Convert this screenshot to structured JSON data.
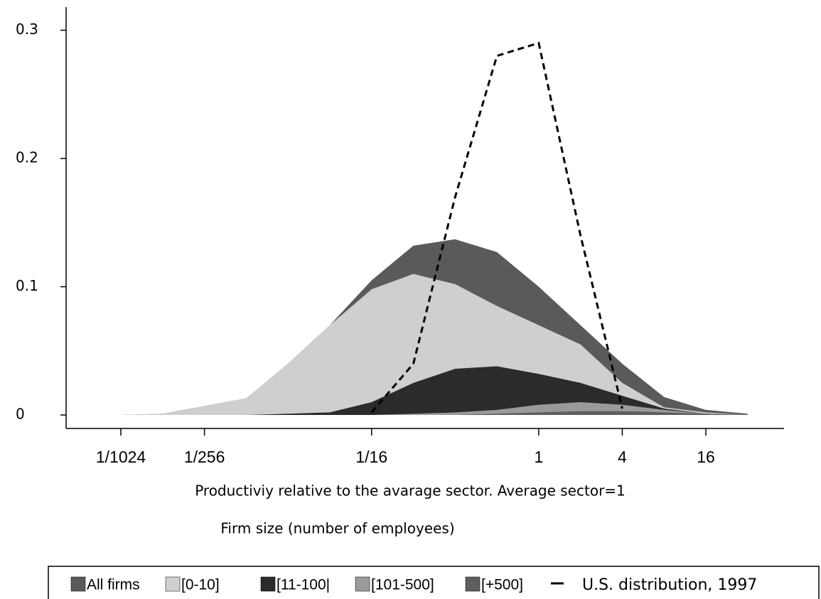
{
  "chart_data": {
    "type": "area",
    "xlabel": "Productiviy relative to the avarage sector. Average sector=1",
    "subtitle": "Firm size (number of employees)",
    "x": [
      0.0009765625,
      0.001953125,
      0.00390625,
      0.0078125,
      0.015625,
      0.03125,
      0.0625,
      0.125,
      0.25,
      0.5,
      1,
      2,
      4,
      8,
      16,
      32
    ],
    "xscale": "log",
    "xlim": [
      0.000403,
      56.5
    ],
    "xticks": [
      {
        "value": 0.0009765625,
        "label": "1/1024"
      },
      {
        "value": 0.00390625,
        "label": "1/256"
      },
      {
        "value": 0.0625,
        "label": "1/16"
      },
      1,
      4,
      16
    ],
    "ylim": [
      -0.0105,
      0.318
    ],
    "yticks": [
      0,
      0.1,
      0.2,
      0.3
    ],
    "legend": "bottom",
    "series": [
      {
        "name": "All firms",
        "color": "#5a5a5a",
        "values": [
          0,
          0.001,
          0.007,
          0.013,
          0.04,
          0.07,
          0.105,
          0.132,
          0.137,
          0.127,
          0.1,
          0.07,
          0.04,
          0.014,
          0.004,
          0.001
        ]
      },
      {
        "name": "[0-10]",
        "color": "#cfcfcf",
        "values": [
          0,
          0.001,
          0.007,
          0.013,
          0.04,
          0.07,
          0.098,
          0.11,
          0.102,
          0.085,
          0.07,
          0.055,
          0.025,
          0.006,
          0.002,
          0
        ]
      },
      {
        "name": "[11-100|",
        "color": "#2b2b2b",
        "values": [
          0,
          0,
          0,
          0,
          0.001,
          0.002,
          0.01,
          0.025,
          0.036,
          0.038,
          0.032,
          0.025,
          0.015,
          0.005,
          0.001,
          0
        ]
      },
      {
        "name": "[101-500]",
        "color": "#9a9a9a",
        "values": [
          0,
          0,
          0,
          0,
          0,
          0,
          0,
          0.001,
          0.002,
          0.004,
          0.008,
          0.01,
          0.008,
          0.004,
          0.001,
          0
        ]
      },
      {
        "name": "[+500]",
        "color": "#5e5e5e",
        "values": [
          0,
          0,
          0,
          0,
          0,
          0,
          0,
          0,
          0,
          0.001,
          0.002,
          0.003,
          0.003,
          0.002,
          0.001,
          0
        ]
      },
      {
        "name": "U.S. distribution, 1997",
        "color": "#000000",
        "style": "dashed",
        "values": [
          null,
          null,
          null,
          null,
          null,
          null,
          0.002,
          0.04,
          0.17,
          0.28,
          0.29,
          0.14,
          0.005,
          null,
          null,
          null
        ]
      }
    ]
  }
}
